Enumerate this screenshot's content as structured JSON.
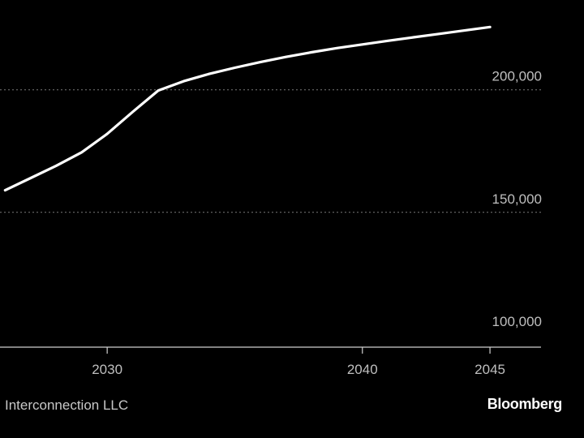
{
  "chart_data": {
    "type": "line",
    "title": "",
    "xlabel": "",
    "ylabel": "",
    "x": [
      2026,
      2027,
      2028,
      2029,
      2030,
      2031,
      2032,
      2033,
      2034,
      2035,
      2036,
      2037,
      2038,
      2039,
      2040,
      2041,
      2042,
      2043,
      2044,
      2045
    ],
    "series": [
      {
        "values": [
          159000,
          164000,
          169000,
          174500,
          182000,
          191000,
          199700,
          203500,
          206500,
          209000,
          211300,
          213400,
          215300,
          217000,
          218500,
          220000,
          221400,
          222800,
          224200,
          225600
        ],
        "color": "#ffffff"
      }
    ],
    "xlim": [
      2025.8,
      2047
    ],
    "ylim": [
      95000,
      232000
    ],
    "x_ticks": [
      {
        "value": 2030,
        "label": "2030"
      },
      {
        "value": 2040,
        "label": "2040"
      },
      {
        "value": 2045,
        "label": "2045"
      }
    ],
    "y_ticks": [
      {
        "value": 100000,
        "label": "100,000"
      },
      {
        "value": 150000,
        "label": "150,000"
      },
      {
        "value": 200000,
        "label": "200,000"
      }
    ],
    "grid": true,
    "legend": "none",
    "colors": {
      "background": "#000000",
      "line": "#ffffff",
      "grid": "#7a7a7a",
      "tick_text": "#bfbfbf"
    }
  },
  "footer": {
    "source": "Interconnection LLC",
    "brand": "Bloomberg"
  }
}
